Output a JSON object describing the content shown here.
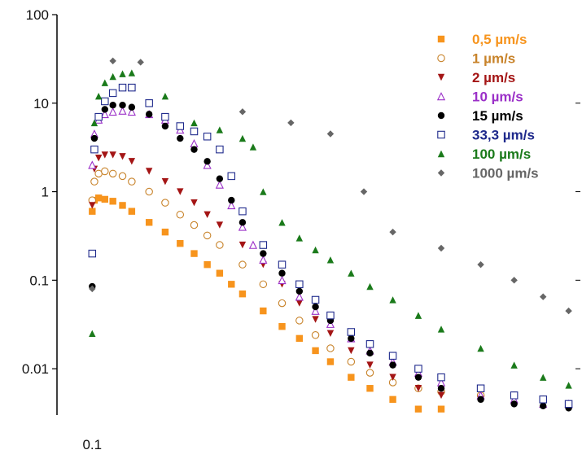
{
  "chart_data": {
    "type": "scatter",
    "title": "",
    "xlabel": "",
    "ylabel": "",
    "x_scale": "log",
    "y_scale": "log",
    "xlim": [
      0.085,
      0.95
    ],
    "ylim": [
      0.003,
      100
    ],
    "grid": false,
    "legend_position": "top-right",
    "x_ticks": [
      {
        "value": 0.1,
        "label": "0.1"
      }
    ],
    "y_ticks": [
      {
        "value": 100,
        "label": "100"
      },
      {
        "value": 10,
        "label": "10"
      },
      {
        "value": 1,
        "label": "1"
      },
      {
        "value": 0.1,
        "label": "0.1"
      },
      {
        "value": 0.01,
        "label": "0.01"
      }
    ],
    "series": [
      {
        "name": "0,5 µm/s",
        "color": "#f7941d",
        "marker": "square-filled",
        "x": [
          0.1,
          0.101,
          0.103,
          0.106,
          0.11,
          0.115,
          0.12,
          0.13,
          0.14,
          0.15,
          0.16,
          0.17,
          0.18,
          0.19,
          0.2,
          0.22,
          0.24,
          0.26,
          0.28,
          0.3,
          0.33,
          0.36,
          0.4,
          0.45,
          0.5
        ],
        "y": [
          0.6,
          0.8,
          0.85,
          0.82,
          0.78,
          0.7,
          0.6,
          0.45,
          0.35,
          0.26,
          0.2,
          0.15,
          0.12,
          0.09,
          0.07,
          0.045,
          0.03,
          0.022,
          0.016,
          0.012,
          0.008,
          0.006,
          0.0045,
          0.0035,
          0.0035
        ]
      },
      {
        "name": "1 µm/s",
        "color": "#c8832a",
        "marker": "circle-open",
        "x": [
          0.1,
          0.101,
          0.103,
          0.106,
          0.11,
          0.115,
          0.12,
          0.13,
          0.14,
          0.15,
          0.16,
          0.17,
          0.18,
          0.2,
          0.22,
          0.24,
          0.26,
          0.28,
          0.3,
          0.33,
          0.36,
          0.4,
          0.45,
          0.5,
          0.6,
          0.7,
          0.8
        ],
        "y": [
          0.8,
          1.3,
          1.6,
          1.7,
          1.6,
          1.5,
          1.3,
          1.0,
          0.75,
          0.55,
          0.42,
          0.32,
          0.25,
          0.15,
          0.09,
          0.055,
          0.035,
          0.024,
          0.017,
          0.012,
          0.009,
          0.007,
          0.006,
          0.0055,
          0.005,
          0.005,
          0.0045
        ]
      },
      {
        "name": "2 µm/s",
        "color": "#a41515",
        "marker": "triangle-down-filled",
        "x": [
          0.1,
          0.101,
          0.103,
          0.106,
          0.11,
          0.115,
          0.12,
          0.13,
          0.14,
          0.15,
          0.16,
          0.17,
          0.18,
          0.2,
          0.22,
          0.24,
          0.26,
          0.28,
          0.3,
          0.33,
          0.36,
          0.4,
          0.45,
          0.5,
          0.6
        ],
        "y": [
          0.7,
          1.8,
          2.4,
          2.6,
          2.6,
          2.5,
          2.2,
          1.7,
          1.3,
          1.0,
          0.75,
          0.55,
          0.42,
          0.25,
          0.15,
          0.09,
          0.055,
          0.036,
          0.025,
          0.016,
          0.011,
          0.008,
          0.006,
          0.005,
          0.0045
        ]
      },
      {
        "name": "10 µm/s",
        "color": "#9b30c8",
        "marker": "triangle-open",
        "x": [
          0.1,
          0.101,
          0.103,
          0.106,
          0.11,
          0.115,
          0.12,
          0.13,
          0.14,
          0.15,
          0.16,
          0.17,
          0.18,
          0.19,
          0.2,
          0.21,
          0.22,
          0.24,
          0.26,
          0.28,
          0.3,
          0.33,
          0.36,
          0.4,
          0.45,
          0.5,
          0.6,
          0.7,
          0.8,
          0.9
        ],
        "y": [
          2.0,
          4.5,
          6.5,
          7.5,
          8.0,
          8.2,
          8.0,
          7.5,
          6.5,
          5.0,
          3.5,
          2.0,
          1.2,
          0.7,
          0.4,
          0.25,
          0.17,
          0.1,
          0.065,
          0.045,
          0.032,
          0.022,
          0.016,
          0.012,
          0.009,
          0.007,
          0.005,
          0.0045,
          0.004,
          0.004
        ]
      },
      {
        "name": "15 µm/s",
        "color": "#000000",
        "marker": "circle-filled",
        "x": [
          0.1,
          0.101,
          0.103,
          0.106,
          0.11,
          0.115,
          0.12,
          0.13,
          0.14,
          0.15,
          0.16,
          0.17,
          0.18,
          0.19,
          0.2,
          0.22,
          0.24,
          0.26,
          0.28,
          0.3,
          0.33,
          0.36,
          0.4,
          0.45,
          0.5,
          0.6,
          0.7,
          0.8,
          0.9
        ],
        "y": [
          0.085,
          4.0,
          7.0,
          8.5,
          9.5,
          9.5,
          9.0,
          7.5,
          5.5,
          4.0,
          3.0,
          2.2,
          1.4,
          0.8,
          0.45,
          0.2,
          0.12,
          0.075,
          0.05,
          0.035,
          0.022,
          0.015,
          0.011,
          0.008,
          0.006,
          0.0045,
          0.004,
          0.0038,
          0.0036
        ]
      },
      {
        "name": "33,3 µm/s",
        "color": "#1f2a8c",
        "marker": "square-open",
        "x": [
          0.1,
          0.101,
          0.103,
          0.106,
          0.11,
          0.115,
          0.12,
          0.13,
          0.14,
          0.15,
          0.16,
          0.17,
          0.18,
          0.19,
          0.2,
          0.22,
          0.24,
          0.26,
          0.28,
          0.3,
          0.33,
          0.36,
          0.4,
          0.45,
          0.5,
          0.6,
          0.7,
          0.8,
          0.9
        ],
        "y": [
          0.2,
          3.0,
          7.0,
          10.5,
          13.0,
          15.0,
          15.0,
          10.0,
          7.0,
          5.5,
          4.8,
          4.2,
          3.0,
          1.5,
          0.6,
          0.25,
          0.15,
          0.09,
          0.06,
          0.04,
          0.026,
          0.019,
          0.014,
          0.01,
          0.008,
          0.006,
          0.005,
          0.0045,
          0.004
        ]
      },
      {
        "name": "100 µm/s",
        "color": "#1a7a1a",
        "marker": "triangle-up-filled",
        "x": [
          0.1,
          0.101,
          0.103,
          0.106,
          0.11,
          0.115,
          0.12,
          0.14,
          0.16,
          0.18,
          0.2,
          0.21,
          0.22,
          0.24,
          0.26,
          0.28,
          0.3,
          0.33,
          0.36,
          0.4,
          0.45,
          0.5,
          0.6,
          0.7,
          0.8,
          0.9
        ],
        "y": [
          0.025,
          6.0,
          12.0,
          17.0,
          20.0,
          21.5,
          22.0,
          12.0,
          6.0,
          5.0,
          4.0,
          3.2,
          1.0,
          0.45,
          0.3,
          0.22,
          0.17,
          0.12,
          0.085,
          0.06,
          0.04,
          0.028,
          0.017,
          0.011,
          0.008,
          0.0065
        ]
      },
      {
        "name": "1000 µm/s",
        "color": "#666666",
        "marker": "diamond-filled",
        "x": [
          0.1,
          0.11,
          0.125,
          0.2,
          0.25,
          0.3,
          0.35,
          0.4,
          0.5,
          0.6,
          0.7,
          0.8,
          0.9
        ],
        "y": [
          0.08,
          30.0,
          29.0,
          8.0,
          6.0,
          4.5,
          1.0,
          0.35,
          0.23,
          0.15,
          0.1,
          0.065,
          0.045
        ]
      }
    ]
  }
}
